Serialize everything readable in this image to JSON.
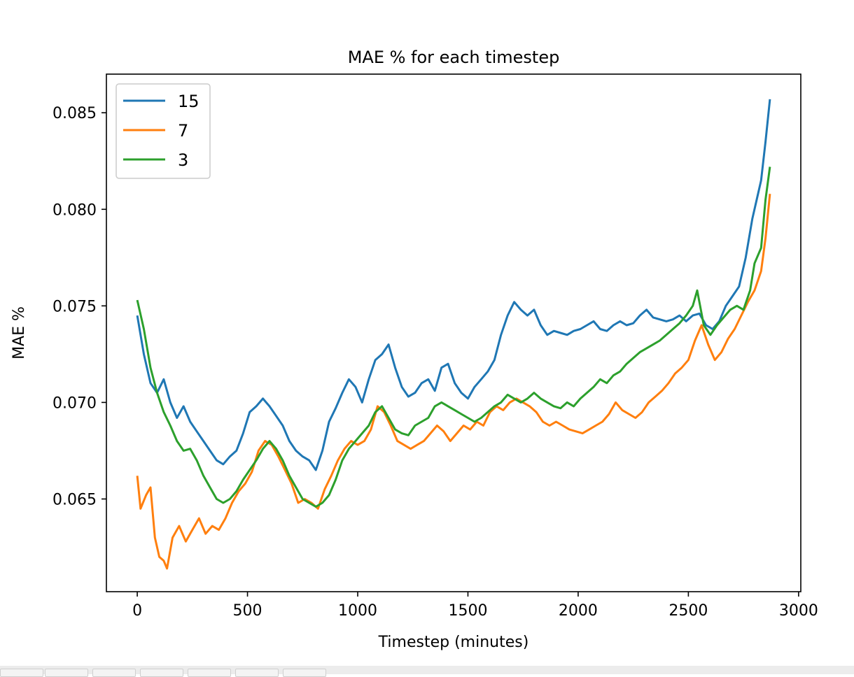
{
  "chart_data": {
    "type": "line",
    "title": "MAE % for each timestep",
    "xlabel": "Timestep (minutes)",
    "ylabel": "MAE %",
    "xlim": [
      -140,
      3010
    ],
    "ylim": [
      0.0602,
      0.087
    ],
    "xticks": [
      0,
      500,
      1000,
      1500,
      2000,
      2500,
      3000
    ],
    "xtick_labels": [
      "0",
      "500",
      "1000",
      "1500",
      "2000",
      "2500",
      "3000"
    ],
    "yticks": [
      0.065,
      0.07,
      0.075,
      0.08,
      0.085
    ],
    "ytick_labels": [
      "0.065",
      "0.070",
      "0.075",
      "0.080",
      "0.085"
    ],
    "grid": false,
    "legend_position": "top-left",
    "series": [
      {
        "name": "15",
        "color": "#1f77b4",
        "points": [
          [
            0,
            0.0745
          ],
          [
            30,
            0.0725
          ],
          [
            60,
            0.071
          ],
          [
            90,
            0.0705
          ],
          [
            120,
            0.0712
          ],
          [
            150,
            0.07
          ],
          [
            180,
            0.0692
          ],
          [
            210,
            0.0698
          ],
          [
            240,
            0.069
          ],
          [
            270,
            0.0685
          ],
          [
            300,
            0.068
          ],
          [
            330,
            0.0675
          ],
          [
            360,
            0.067
          ],
          [
            390,
            0.0668
          ],
          [
            420,
            0.0672
          ],
          [
            450,
            0.0675
          ],
          [
            480,
            0.0684
          ],
          [
            510,
            0.0695
          ],
          [
            540,
            0.0698
          ],
          [
            570,
            0.0702
          ],
          [
            600,
            0.0698
          ],
          [
            630,
            0.0693
          ],
          [
            660,
            0.0688
          ],
          [
            690,
            0.068
          ],
          [
            720,
            0.0675
          ],
          [
            750,
            0.0672
          ],
          [
            780,
            0.067
          ],
          [
            810,
            0.0665
          ],
          [
            840,
            0.0675
          ],
          [
            870,
            0.069
          ],
          [
            900,
            0.0697
          ],
          [
            930,
            0.0705
          ],
          [
            960,
            0.0712
          ],
          [
            990,
            0.0708
          ],
          [
            1020,
            0.07
          ],
          [
            1050,
            0.0712
          ],
          [
            1080,
            0.0722
          ],
          [
            1110,
            0.0725
          ],
          [
            1140,
            0.073
          ],
          [
            1170,
            0.0718
          ],
          [
            1200,
            0.0708
          ],
          [
            1230,
            0.0703
          ],
          [
            1260,
            0.0705
          ],
          [
            1290,
            0.071
          ],
          [
            1320,
            0.0712
          ],
          [
            1350,
            0.0706
          ],
          [
            1380,
            0.0718
          ],
          [
            1410,
            0.072
          ],
          [
            1440,
            0.071
          ],
          [
            1470,
            0.0705
          ],
          [
            1500,
            0.0702
          ],
          [
            1530,
            0.0708
          ],
          [
            1560,
            0.0712
          ],
          [
            1590,
            0.0716
          ],
          [
            1620,
            0.0722
          ],
          [
            1650,
            0.0735
          ],
          [
            1680,
            0.0745
          ],
          [
            1710,
            0.0752
          ],
          [
            1740,
            0.0748
          ],
          [
            1770,
            0.0745
          ],
          [
            1800,
            0.0748
          ],
          [
            1830,
            0.074
          ],
          [
            1860,
            0.0735
          ],
          [
            1890,
            0.0737
          ],
          [
            1920,
            0.0736
          ],
          [
            1950,
            0.0735
          ],
          [
            1980,
            0.0737
          ],
          [
            2010,
            0.0738
          ],
          [
            2040,
            0.074
          ],
          [
            2070,
            0.0742
          ],
          [
            2100,
            0.0738
          ],
          [
            2130,
            0.0737
          ],
          [
            2160,
            0.074
          ],
          [
            2190,
            0.0742
          ],
          [
            2220,
            0.074
          ],
          [
            2250,
            0.0741
          ],
          [
            2280,
            0.0745
          ],
          [
            2310,
            0.0748
          ],
          [
            2340,
            0.0744
          ],
          [
            2370,
            0.0743
          ],
          [
            2400,
            0.0742
          ],
          [
            2430,
            0.0743
          ],
          [
            2460,
            0.0745
          ],
          [
            2490,
            0.0742
          ],
          [
            2520,
            0.0745
          ],
          [
            2550,
            0.0746
          ],
          [
            2580,
            0.074
          ],
          [
            2610,
            0.0738
          ],
          [
            2640,
            0.0742
          ],
          [
            2670,
            0.075
          ],
          [
            2700,
            0.0755
          ],
          [
            2730,
            0.076
          ],
          [
            2760,
            0.0775
          ],
          [
            2790,
            0.0795
          ],
          [
            2810,
            0.0805
          ],
          [
            2830,
            0.0815
          ],
          [
            2850,
            0.0835
          ],
          [
            2870,
            0.0857
          ]
        ]
      },
      {
        "name": "7",
        "color": "#ff7f0e",
        "points": [
          [
            0,
            0.0662
          ],
          [
            15,
            0.0645
          ],
          [
            40,
            0.0652
          ],
          [
            60,
            0.0656
          ],
          [
            80,
            0.063
          ],
          [
            100,
            0.062
          ],
          [
            120,
            0.0618
          ],
          [
            135,
            0.0614
          ],
          [
            160,
            0.063
          ],
          [
            190,
            0.0636
          ],
          [
            220,
            0.0628
          ],
          [
            250,
            0.0634
          ],
          [
            280,
            0.064
          ],
          [
            310,
            0.0632
          ],
          [
            340,
            0.0636
          ],
          [
            370,
            0.0634
          ],
          [
            400,
            0.064
          ],
          [
            430,
            0.0648
          ],
          [
            460,
            0.0654
          ],
          [
            490,
            0.0658
          ],
          [
            520,
            0.0664
          ],
          [
            550,
            0.0675
          ],
          [
            580,
            0.068
          ],
          [
            610,
            0.0678
          ],
          [
            640,
            0.0672
          ],
          [
            670,
            0.0665
          ],
          [
            700,
            0.0658
          ],
          [
            730,
            0.0648
          ],
          [
            760,
            0.065
          ],
          [
            790,
            0.0648
          ],
          [
            820,
            0.0645
          ],
          [
            850,
            0.0655
          ],
          [
            880,
            0.0662
          ],
          [
            910,
            0.067
          ],
          [
            940,
            0.0676
          ],
          [
            970,
            0.068
          ],
          [
            1000,
            0.0678
          ],
          [
            1030,
            0.068
          ],
          [
            1060,
            0.0686
          ],
          [
            1090,
            0.0698
          ],
          [
            1120,
            0.0695
          ],
          [
            1150,
            0.0688
          ],
          [
            1180,
            0.068
          ],
          [
            1210,
            0.0678
          ],
          [
            1240,
            0.0676
          ],
          [
            1270,
            0.0678
          ],
          [
            1300,
            0.068
          ],
          [
            1330,
            0.0684
          ],
          [
            1360,
            0.0688
          ],
          [
            1390,
            0.0685
          ],
          [
            1420,
            0.068
          ],
          [
            1450,
            0.0684
          ],
          [
            1480,
            0.0688
          ],
          [
            1510,
            0.0686
          ],
          [
            1540,
            0.069
          ],
          [
            1570,
            0.0688
          ],
          [
            1600,
            0.0695
          ],
          [
            1630,
            0.0698
          ],
          [
            1660,
            0.0696
          ],
          [
            1690,
            0.07
          ],
          [
            1720,
            0.0702
          ],
          [
            1750,
            0.07
          ],
          [
            1780,
            0.0698
          ],
          [
            1810,
            0.0695
          ],
          [
            1840,
            0.069
          ],
          [
            1870,
            0.0688
          ],
          [
            1900,
            0.069
          ],
          [
            1930,
            0.0688
          ],
          [
            1960,
            0.0686
          ],
          [
            1990,
            0.0685
          ],
          [
            2020,
            0.0684
          ],
          [
            2050,
            0.0686
          ],
          [
            2080,
            0.0688
          ],
          [
            2110,
            0.069
          ],
          [
            2140,
            0.0694
          ],
          [
            2170,
            0.07
          ],
          [
            2200,
            0.0696
          ],
          [
            2230,
            0.0694
          ],
          [
            2260,
            0.0692
          ],
          [
            2290,
            0.0695
          ],
          [
            2320,
            0.07
          ],
          [
            2350,
            0.0703
          ],
          [
            2380,
            0.0706
          ],
          [
            2410,
            0.071
          ],
          [
            2440,
            0.0715
          ],
          [
            2470,
            0.0718
          ],
          [
            2500,
            0.0722
          ],
          [
            2530,
            0.0732
          ],
          [
            2560,
            0.074
          ],
          [
            2590,
            0.073
          ],
          [
            2620,
            0.0722
          ],
          [
            2650,
            0.0726
          ],
          [
            2680,
            0.0733
          ],
          [
            2710,
            0.0738
          ],
          [
            2740,
            0.0745
          ],
          [
            2770,
            0.0752
          ],
          [
            2800,
            0.0758
          ],
          [
            2830,
            0.0768
          ],
          [
            2850,
            0.0785
          ],
          [
            2870,
            0.0808
          ]
        ]
      },
      {
        "name": "3",
        "color": "#2ca02c",
        "points": [
          [
            0,
            0.0753
          ],
          [
            30,
            0.0738
          ],
          [
            60,
            0.0718
          ],
          [
            90,
            0.0705
          ],
          [
            120,
            0.0695
          ],
          [
            150,
            0.0688
          ],
          [
            180,
            0.068
          ],
          [
            210,
            0.0675
          ],
          [
            240,
            0.0676
          ],
          [
            270,
            0.067
          ],
          [
            300,
            0.0662
          ],
          [
            330,
            0.0656
          ],
          [
            360,
            0.065
          ],
          [
            390,
            0.0648
          ],
          [
            420,
            0.065
          ],
          [
            450,
            0.0654
          ],
          [
            480,
            0.066
          ],
          [
            510,
            0.0665
          ],
          [
            540,
            0.067
          ],
          [
            570,
            0.0676
          ],
          [
            600,
            0.068
          ],
          [
            630,
            0.0676
          ],
          [
            660,
            0.067
          ],
          [
            690,
            0.0662
          ],
          [
            720,
            0.0656
          ],
          [
            750,
            0.065
          ],
          [
            780,
            0.0648
          ],
          [
            810,
            0.0646
          ],
          [
            840,
            0.0648
          ],
          [
            870,
            0.0652
          ],
          [
            900,
            0.066
          ],
          [
            930,
            0.067
          ],
          [
            960,
            0.0676
          ],
          [
            990,
            0.068
          ],
          [
            1020,
            0.0684
          ],
          [
            1050,
            0.0688
          ],
          [
            1080,
            0.0695
          ],
          [
            1110,
            0.0698
          ],
          [
            1140,
            0.0692
          ],
          [
            1170,
            0.0686
          ],
          [
            1200,
            0.0684
          ],
          [
            1230,
            0.0683
          ],
          [
            1260,
            0.0688
          ],
          [
            1290,
            0.069
          ],
          [
            1320,
            0.0692
          ],
          [
            1350,
            0.0698
          ],
          [
            1380,
            0.07
          ],
          [
            1410,
            0.0698
          ],
          [
            1440,
            0.0696
          ],
          [
            1470,
            0.0694
          ],
          [
            1500,
            0.0692
          ],
          [
            1530,
            0.069
          ],
          [
            1560,
            0.0692
          ],
          [
            1590,
            0.0695
          ],
          [
            1620,
            0.0698
          ],
          [
            1650,
            0.07
          ],
          [
            1680,
            0.0704
          ],
          [
            1710,
            0.0702
          ],
          [
            1740,
            0.07
          ],
          [
            1770,
            0.0702
          ],
          [
            1800,
            0.0705
          ],
          [
            1830,
            0.0702
          ],
          [
            1860,
            0.07
          ],
          [
            1890,
            0.0698
          ],
          [
            1920,
            0.0697
          ],
          [
            1950,
            0.07
          ],
          [
            1980,
            0.0698
          ],
          [
            2010,
            0.0702
          ],
          [
            2040,
            0.0705
          ],
          [
            2070,
            0.0708
          ],
          [
            2100,
            0.0712
          ],
          [
            2130,
            0.071
          ],
          [
            2160,
            0.0714
          ],
          [
            2190,
            0.0716
          ],
          [
            2220,
            0.072
          ],
          [
            2250,
            0.0723
          ],
          [
            2280,
            0.0726
          ],
          [
            2310,
            0.0728
          ],
          [
            2340,
            0.073
          ],
          [
            2370,
            0.0732
          ],
          [
            2400,
            0.0735
          ],
          [
            2430,
            0.0738
          ],
          [
            2460,
            0.0741
          ],
          [
            2490,
            0.0745
          ],
          [
            2520,
            0.075
          ],
          [
            2540,
            0.0758
          ],
          [
            2570,
            0.074
          ],
          [
            2600,
            0.0735
          ],
          [
            2630,
            0.074
          ],
          [
            2660,
            0.0744
          ],
          [
            2690,
            0.0748
          ],
          [
            2720,
            0.075
          ],
          [
            2750,
            0.0748
          ],
          [
            2780,
            0.0758
          ],
          [
            2800,
            0.0772
          ],
          [
            2830,
            0.078
          ],
          [
            2850,
            0.0805
          ],
          [
            2870,
            0.0822
          ]
        ]
      }
    ]
  },
  "legend": {
    "items": [
      "15",
      "7",
      "3"
    ]
  },
  "toolbar": {
    "button_count": 7
  }
}
